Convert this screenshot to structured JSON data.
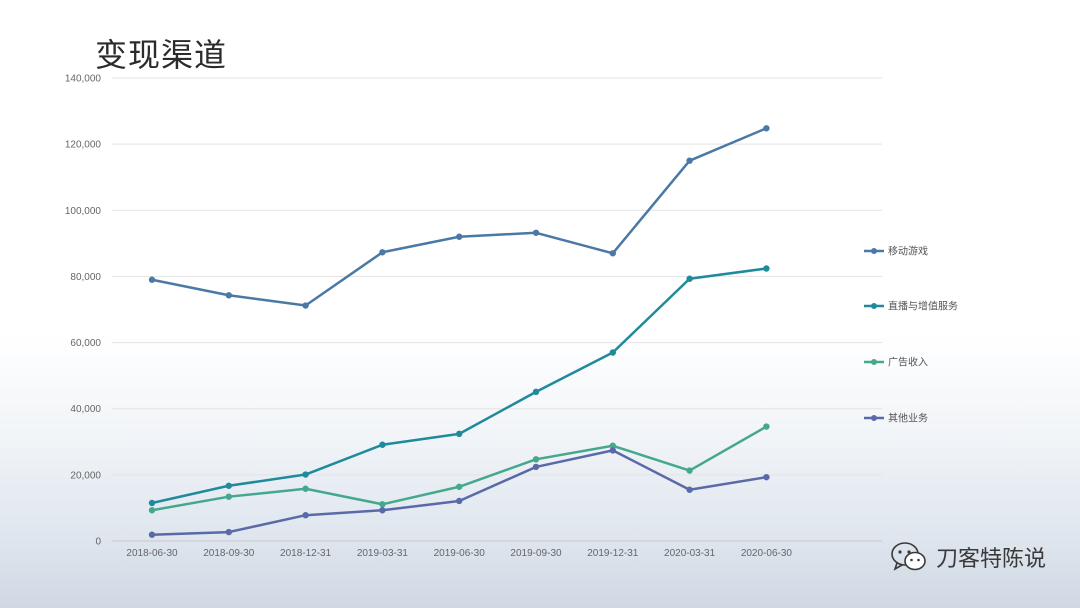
{
  "slide": {
    "title": "变现渠道"
  },
  "watermark": {
    "text": "刀客特陈说",
    "icon": "wechat-icon"
  },
  "chart_data": {
    "type": "line",
    "title": "",
    "xlabel": "",
    "ylabel": "",
    "categories": [
      "2018-06-30",
      "2018-09-30",
      "2018-12-31",
      "2019-03-31",
      "2019-06-30",
      "2019-09-30",
      "2019-12-31",
      "2020-03-31",
      "2020-06-30"
    ],
    "ylim": [
      0,
      140000
    ],
    "yticks": [
      0,
      20000,
      40000,
      60000,
      80000,
      100000,
      120000,
      140000
    ],
    "ytick_labels": [
      "0",
      "20,000",
      "40,000",
      "60,000",
      "80,000",
      "100,000",
      "120,000",
      "140,000"
    ],
    "grid": true,
    "legend_position": "right",
    "series": [
      {
        "name": "移动游戏",
        "color": "#4a79a5",
        "values": [
          79000,
          74300,
          71200,
          87300,
          92000,
          93200,
          87000,
          115000,
          124800
        ]
      },
      {
        "name": "直播与增值服务",
        "color": "#1f8a9c",
        "values": [
          11500,
          16700,
          20100,
          29100,
          32400,
          45100,
          57000,
          79300,
          82400
        ]
      },
      {
        "name": "广告收入",
        "color": "#45a88e",
        "values": [
          9300,
          13400,
          15800,
          11100,
          16400,
          24700,
          28800,
          21300,
          34600
        ]
      },
      {
        "name": "其他业务",
        "color": "#5a6aa8",
        "values": [
          1900,
          2700,
          7800,
          9300,
          12100,
          22400,
          27400,
          15500,
          19300
        ]
      }
    ]
  }
}
